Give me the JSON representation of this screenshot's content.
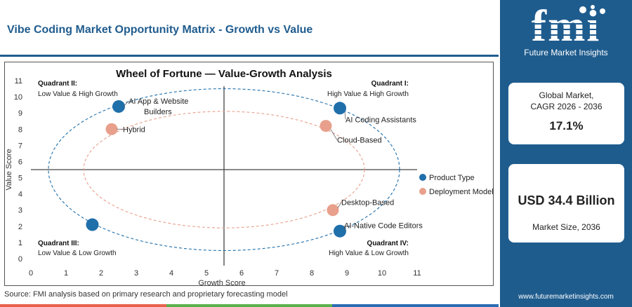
{
  "page_title": "Vibe Coding Market Opportunity Matrix - Growth vs Value",
  "source": "Source: FMI analysis based on primary research and proprietary forecasting model",
  "brand": {
    "logo_text": "fmi",
    "name": "Future Market Insights",
    "url": "www.futuremarketinsights.com"
  },
  "colors": {
    "brand_blue": "#1f5c8e",
    "product_type": "#1f6fab",
    "deployment_model": "#e8a08c",
    "footer_strip": [
      "#e8614a",
      "#59b24a",
      "#2a6cb5"
    ]
  },
  "stats": {
    "cagr_label": "Global Market,\nCAGR 2026 - 2036",
    "cagr_value": "17.1%",
    "size_value": "USD 34.4 Billion",
    "size_label": "Market Size, 2036"
  },
  "chart_data": {
    "type": "scatter",
    "title": "Wheel of Fortune — Value-Growth Analysis",
    "xlabel": "Growth Score",
    "ylabel": "Value Score",
    "xlim": [
      0,
      11
    ],
    "ylim": [
      0,
      11
    ],
    "xticks": [
      0,
      1,
      2,
      3,
      4,
      5,
      6,
      7,
      8,
      9,
      10,
      11
    ],
    "yticks": [
      0,
      1,
      2,
      3,
      4,
      5,
      6,
      7,
      8,
      9,
      10,
      11
    ],
    "divider_x": 5.5,
    "divider_y": 5.5,
    "grid": false,
    "legend_position": "right",
    "quadrants": [
      {
        "id": "q2",
        "title": "Quadrant II:",
        "subtitle": "Low Value & High Growth",
        "corner": "top-left"
      },
      {
        "id": "q1",
        "title": "Quadrant I:",
        "subtitle": "High Value & High Growth",
        "corner": "top-right"
      },
      {
        "id": "q3",
        "title": "Quadrant III:",
        "subtitle": "Low Value & Low Growth",
        "corner": "bottom-left"
      },
      {
        "id": "q4",
        "title": "Quadrant IV:",
        "subtitle": "High Value & Low Growth",
        "corner": "bottom-right"
      }
    ],
    "series": [
      {
        "name": "Product Type",
        "color": "#1f6fab",
        "points": [
          {
            "label": "AI App & Website Builders",
            "x": 2.5,
            "y": 9.4
          },
          {
            "label": "AI Coding Assistants",
            "x": 8.8,
            "y": 9.3
          },
          {
            "label": "AI-Native Code Editors",
            "x": 8.8,
            "y": 1.7
          },
          {
            "label": "",
            "x": 1.75,
            "y": 2.1
          }
        ]
      },
      {
        "name": "Deployment Model",
        "color": "#e8a08c",
        "points": [
          {
            "label": "Hybrid",
            "x": 2.3,
            "y": 8.0
          },
          {
            "label": "Cloud-Based",
            "x": 8.4,
            "y": 8.2
          },
          {
            "label": "Desktop-Based",
            "x": 8.6,
            "y": 3.0
          }
        ]
      }
    ],
    "ellipses": [
      {
        "series": "Product Type",
        "cx": 5.5,
        "cy": 5.5,
        "rx": 5.0,
        "ry": 5.0,
        "style": "dashed"
      },
      {
        "series": "Deployment Model",
        "cx": 5.5,
        "cy": 5.5,
        "rx": 4.0,
        "ry": 3.6,
        "style": "dashed"
      }
    ]
  }
}
